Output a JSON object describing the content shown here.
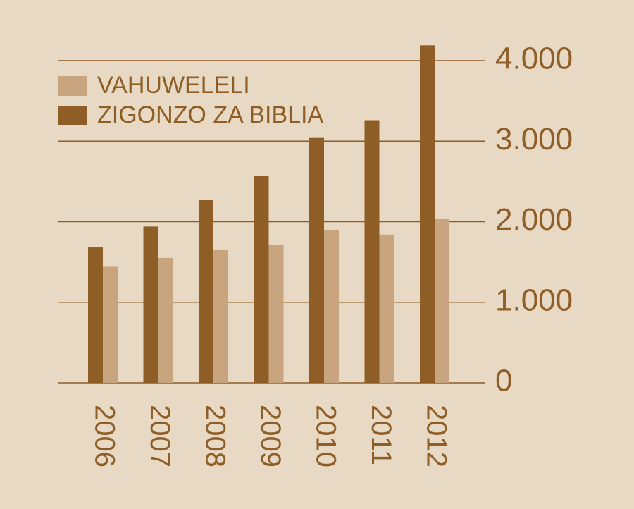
{
  "chart_data": {
    "type": "bar",
    "categories": [
      "2006",
      "2007",
      "2008",
      "2009",
      "2010",
      "2011",
      "2012"
    ],
    "series": [
      {
        "name": "VAHUWELELI",
        "color": "#c9a57f",
        "values": [
          1440,
          1550,
          1650,
          1710,
          1900,
          1840,
          2040
        ]
      },
      {
        "name": "ZIGONZO ZA BIBLIA",
        "color": "#8f5e26",
        "values": [
          1680,
          1940,
          2270,
          2570,
          3040,
          3260,
          4190
        ]
      }
    ],
    "ylim": [
      0,
      4000
    ],
    "yticks": [
      0,
      {
        "value": 1000,
        "label": "1.000"
      },
      {
        "value": 2000,
        "label": "2.000"
      },
      {
        "value": 3000,
        "label": "3.000"
      },
      {
        "value": 4000,
        "label": "4.000"
      }
    ],
    "grid": true,
    "legend": "top-left"
  }
}
